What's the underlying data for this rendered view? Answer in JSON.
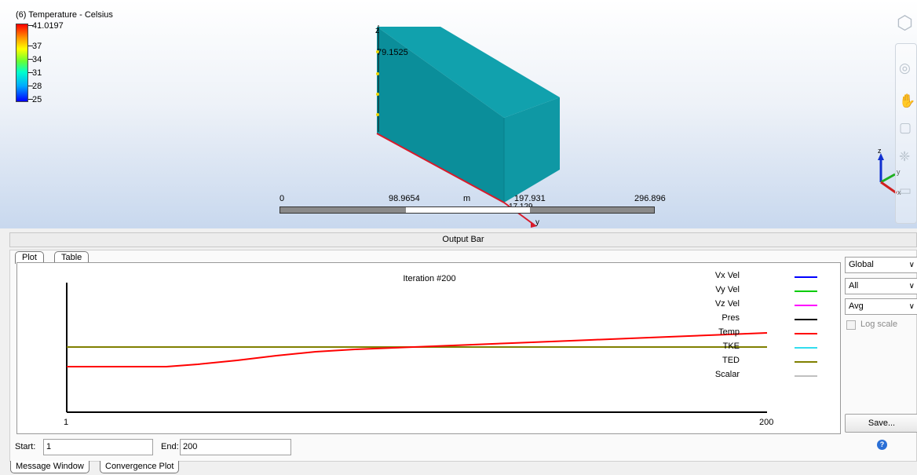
{
  "viewport": {
    "legend": {
      "title": "(6) Temperature - Celsius",
      "ticks": [
        "41.0197",
        "37",
        "34",
        "31",
        "28",
        "25"
      ]
    },
    "model_label": "79.1525",
    "bottom_label": "17.129",
    "axis_z": "z",
    "axis_y": "y",
    "scale": {
      "labels": [
        "0",
        "98.9654",
        "m",
        "197.931",
        "296.896"
      ]
    },
    "triad": {
      "z": "z",
      "y": "y",
      "x": "x"
    },
    "colors": {
      "model": "#0e8f9c",
      "background_bottom": "#c8d8ee"
    }
  },
  "output_bar": {
    "label": "Output Bar"
  },
  "panel": {
    "tabs": {
      "plot": "Plot",
      "table": "Table"
    },
    "plot_title": "Iteration #200",
    "x_start_label": "1",
    "x_end_label": "200",
    "legend": [
      {
        "name": "Vx Vel",
        "color": "#0000ff"
      },
      {
        "name": "Vy Vel",
        "color": "#00cc00"
      },
      {
        "name": "Vz Vel",
        "color": "#ff00ff"
      },
      {
        "name": "Pres",
        "color": "#000000"
      },
      {
        "name": "Temp",
        "color": "#ff0000"
      },
      {
        "name": "TKE",
        "color": "#33ddee"
      },
      {
        "name": "TED",
        "color": "#808000"
      },
      {
        "name": "Scalar",
        "color": "#c0c0c0"
      }
    ],
    "dropdowns": {
      "scope": "Global",
      "filter": "All",
      "stat": "Avg"
    },
    "log_scale_label": "Log scale",
    "save_label": "Save...",
    "start": {
      "label": "Start:",
      "value": "1"
    },
    "end": {
      "label": "End:",
      "value": "200"
    }
  },
  "window_tabs": {
    "message": "Message Window",
    "convergence": "Convergence Plot"
  }
}
